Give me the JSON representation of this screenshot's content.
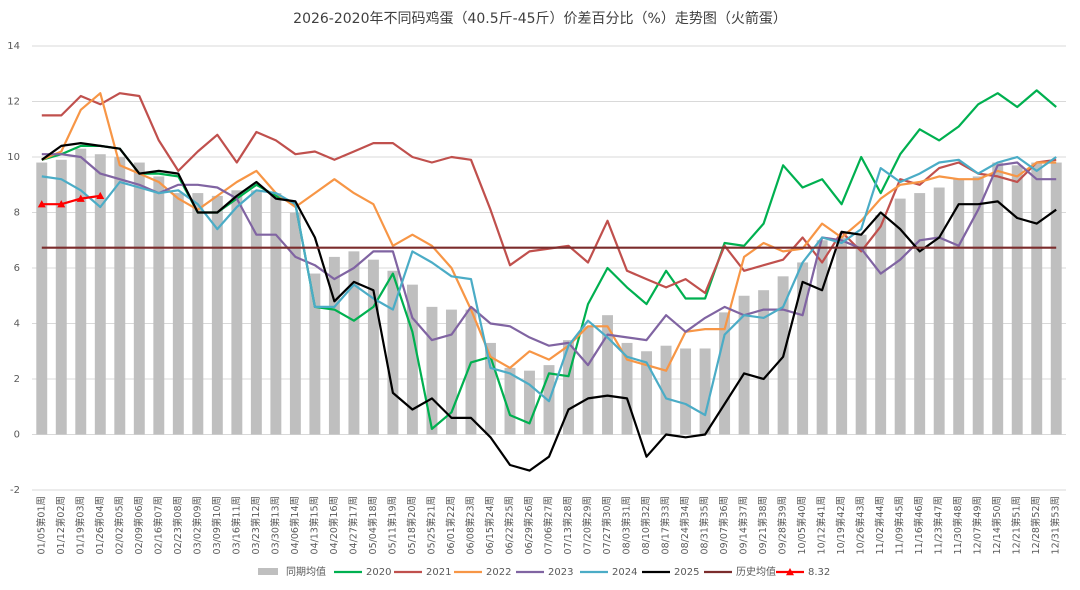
{
  "chart_data": {
    "type": "combo",
    "title": "2026-2020年不同码鸡蛋（40.5斤-45斤）价差百分比（%）走势图（火箭蛋）",
    "categories": [
      "01/05第01周",
      "01/12第02周",
      "01/19第03周",
      "01/26第04周",
      "02/02第05周",
      "02/09第06周",
      "02/16第07周",
      "02/23第08周",
      "03/02第09周",
      "03/09第10周",
      "03/16第11周",
      "03/23第12周",
      "03/30第13周",
      "04/06第14周",
      "04/13第15周",
      "04/20第16周",
      "04/27第17周",
      "05/04第18周",
      "05/11第19周",
      "05/18第20周",
      "05/25第21周",
      "06/01第22周",
      "06/08第23周",
      "06/15第24周",
      "06/22第25周",
      "06/29第26周",
      "07/06第27周",
      "07/13第28周",
      "07/20第29周",
      "07/27第30周",
      "08/03第31周",
      "08/10第32周",
      "08/17第33周",
      "08/24第34周",
      "08/31第35周",
      "09/07第36周",
      "09/14第37周",
      "09/21第38周",
      "09/28第39周",
      "10/05第40周",
      "10/12第41周",
      "10/19第42周",
      "10/26第43周",
      "11/02第44周",
      "11/09第45周",
      "11/16第46周",
      "11/23第47周",
      "11/30第48周",
      "12/07第49周",
      "12/14第50周",
      "12/21第51周",
      "12/28第52周",
      "12/31第53周"
    ],
    "ylim": [
      -2,
      14
    ],
    "yticks": [
      -2,
      0,
      2,
      4,
      6,
      8,
      10,
      12,
      14
    ],
    "grid": true,
    "legend": "bottom",
    "series": [
      {
        "name": "同期均值",
        "type": "bar",
        "color": "#bfbfbf",
        "values": [
          9.8,
          9.9,
          10.3,
          10.1,
          10.0,
          9.8,
          9.3,
          8.7,
          8.7,
          8.6,
          8.8,
          8.8,
          8.7,
          8.0,
          5.8,
          6.4,
          6.6,
          6.3,
          5.9,
          5.4,
          4.6,
          4.5,
          4.5,
          3.3,
          2.4,
          2.3,
          2.5,
          3.4,
          3.9,
          4.3,
          3.3,
          3.0,
          3.2,
          3.1,
          3.1,
          4.4,
          5.0,
          5.2,
          5.7,
          6.2,
          7.0,
          7.1,
          7.2,
          7.9,
          8.5,
          8.7,
          8.9,
          9.2,
          9.3,
          9.8,
          9.7,
          9.8,
          9.8
        ]
      },
      {
        "name": "2020",
        "type": "line",
        "color": "#00b050",
        "values": [
          9.9,
          10.1,
          10.4,
          10.4,
          10.3,
          9.4,
          9.4,
          9.3,
          8.0,
          8.0,
          8.5,
          9.0,
          8.6,
          8.3,
          4.6,
          4.5,
          4.1,
          4.6,
          5.8,
          3.7,
          0.2,
          0.8,
          2.6,
          2.8,
          0.7,
          0.4,
          2.2,
          2.1,
          4.7,
          6.0,
          5.3,
          4.7,
          5.9,
          4.9,
          4.9,
          6.9,
          6.8,
          7.6,
          9.7,
          8.9,
          9.2,
          8.3,
          10.0,
          8.7,
          10.1,
          11.0,
          10.6,
          11.1,
          11.9,
          12.3,
          11.8,
          12.4,
          11.8
        ]
      },
      {
        "name": "2021",
        "type": "line",
        "color": "#c0504d",
        "values": [
          11.5,
          11.5,
          12.2,
          11.9,
          12.3,
          12.2,
          10.6,
          9.5,
          10.2,
          10.8,
          9.8,
          10.9,
          10.6,
          10.1,
          10.2,
          9.9,
          10.2,
          10.5,
          10.5,
          10.0,
          9.8,
          10.0,
          9.9,
          8.1,
          6.1,
          6.6,
          6.7,
          6.8,
          6.2,
          7.7,
          5.9,
          5.6,
          5.3,
          5.6,
          5.1,
          6.8,
          5.9,
          6.1,
          6.3,
          7.1,
          6.2,
          7.3,
          6.6,
          7.5,
          9.2,
          9.0,
          9.6,
          9.8,
          9.4,
          9.3,
          9.1,
          9.8,
          9.9
        ]
      },
      {
        "name": "2022",
        "type": "line",
        "color": "#f79646",
        "values": [
          9.9,
          10.2,
          11.7,
          12.3,
          9.7,
          9.4,
          9.1,
          8.5,
          8.1,
          8.6,
          9.1,
          9.5,
          8.7,
          8.2,
          8.7,
          9.2,
          8.7,
          8.3,
          6.8,
          7.2,
          6.8,
          6.0,
          4.5,
          2.8,
          2.4,
          3.0,
          2.7,
          3.2,
          3.9,
          3.9,
          2.7,
          2.5,
          2.3,
          3.7,
          3.8,
          3.8,
          6.4,
          6.9,
          6.6,
          6.7,
          7.6,
          7.1,
          7.7,
          8.5,
          9.0,
          9.1,
          9.3,
          9.2,
          9.2,
          9.5,
          9.3,
          9.8,
          9.8
        ]
      },
      {
        "name": "2023",
        "type": "line",
        "color": "#8064a2",
        "values": [
          10.1,
          10.1,
          10.0,
          9.4,
          9.2,
          9.0,
          8.7,
          9.0,
          9.0,
          8.9,
          8.5,
          7.2,
          7.2,
          6.4,
          6.1,
          5.6,
          6.0,
          6.6,
          6.6,
          4.2,
          3.4,
          3.6,
          4.6,
          4.0,
          3.9,
          3.5,
          3.2,
          3.3,
          2.5,
          3.6,
          3.5,
          3.4,
          4.3,
          3.7,
          4.2,
          4.6,
          4.3,
          4.5,
          4.5,
          4.3,
          7.1,
          7.0,
          6.7,
          5.8,
          6.3,
          7.0,
          7.1,
          6.8,
          8.1,
          9.7,
          9.8,
          9.2,
          9.2
        ]
      },
      {
        "name": "2024",
        "type": "line",
        "color": "#4bacc6",
        "values": [
          9.3,
          9.2,
          8.8,
          8.2,
          9.1,
          8.9,
          8.7,
          8.8,
          8.3,
          7.4,
          8.2,
          8.8,
          8.7,
          8.3,
          4.6,
          4.6,
          5.4,
          4.9,
          4.5,
          6.6,
          6.2,
          5.7,
          5.6,
          2.4,
          2.2,
          1.8,
          1.2,
          3.2,
          4.1,
          3.5,
          2.8,
          2.6,
          1.3,
          1.1,
          0.7,
          3.6,
          4.3,
          4.2,
          4.6,
          6.2,
          7.1,
          6.9,
          7.4,
          9.6,
          9.1,
          9.4,
          9.8,
          9.9,
          9.4,
          9.8,
          10.0,
          9.5,
          10.0
        ]
      },
      {
        "name": "2025",
        "type": "line",
        "color": "#000000",
        "values": [
          9.9,
          10.4,
          10.5,
          10.4,
          10.3,
          9.4,
          9.5,
          9.4,
          8.0,
          8.0,
          8.6,
          9.1,
          8.5,
          8.4,
          7.1,
          4.8,
          5.5,
          5.2,
          1.5,
          0.9,
          1.3,
          0.6,
          0.6,
          -0.1,
          -1.1,
          -1.3,
          -0.8,
          0.9,
          1.3,
          1.4,
          1.3,
          -0.8,
          0.0,
          -0.1,
          0.0,
          1.1,
          2.2,
          2.0,
          2.8,
          5.5,
          5.2,
          7.3,
          7.2,
          8.0,
          7.4,
          6.6,
          7.1,
          8.3,
          8.3,
          8.4,
          7.8,
          7.6,
          8.1
        ]
      },
      {
        "name": "历史均值",
        "type": "line",
        "color": "#7b2c2c",
        "values": [
          6.73,
          6.73,
          6.73,
          6.73,
          6.73,
          6.73,
          6.73,
          6.73,
          6.73,
          6.73,
          6.73,
          6.73,
          6.73,
          6.73,
          6.73,
          6.73,
          6.73,
          6.73,
          6.73,
          6.73,
          6.73,
          6.73,
          6.73,
          6.73,
          6.73,
          6.73,
          6.73,
          6.73,
          6.73,
          6.73,
          6.73,
          6.73,
          6.73,
          6.73,
          6.73,
          6.73,
          6.73,
          6.73,
          6.73,
          6.73,
          6.73,
          6.73,
          6.73,
          6.73,
          6.73,
          6.73,
          6.73,
          6.73,
          6.73,
          6.73,
          6.73,
          6.73,
          6.73
        ]
      },
      {
        "name": "8.32",
        "type": "line",
        "marker": "triangle",
        "color": "#ff0000",
        "values": [
          8.3,
          8.3,
          8.5,
          8.6,
          null,
          null,
          null,
          null,
          null,
          null,
          null,
          null,
          null,
          null,
          null,
          null,
          null,
          null,
          null,
          null,
          null,
          null,
          null,
          null,
          null,
          null,
          null,
          null,
          null,
          null,
          null,
          null,
          null,
          null,
          null,
          null,
          null,
          null,
          null,
          null,
          null,
          null,
          null,
          null,
          null,
          null,
          null,
          null,
          null,
          null,
          null,
          null,
          null
        ]
      }
    ]
  }
}
